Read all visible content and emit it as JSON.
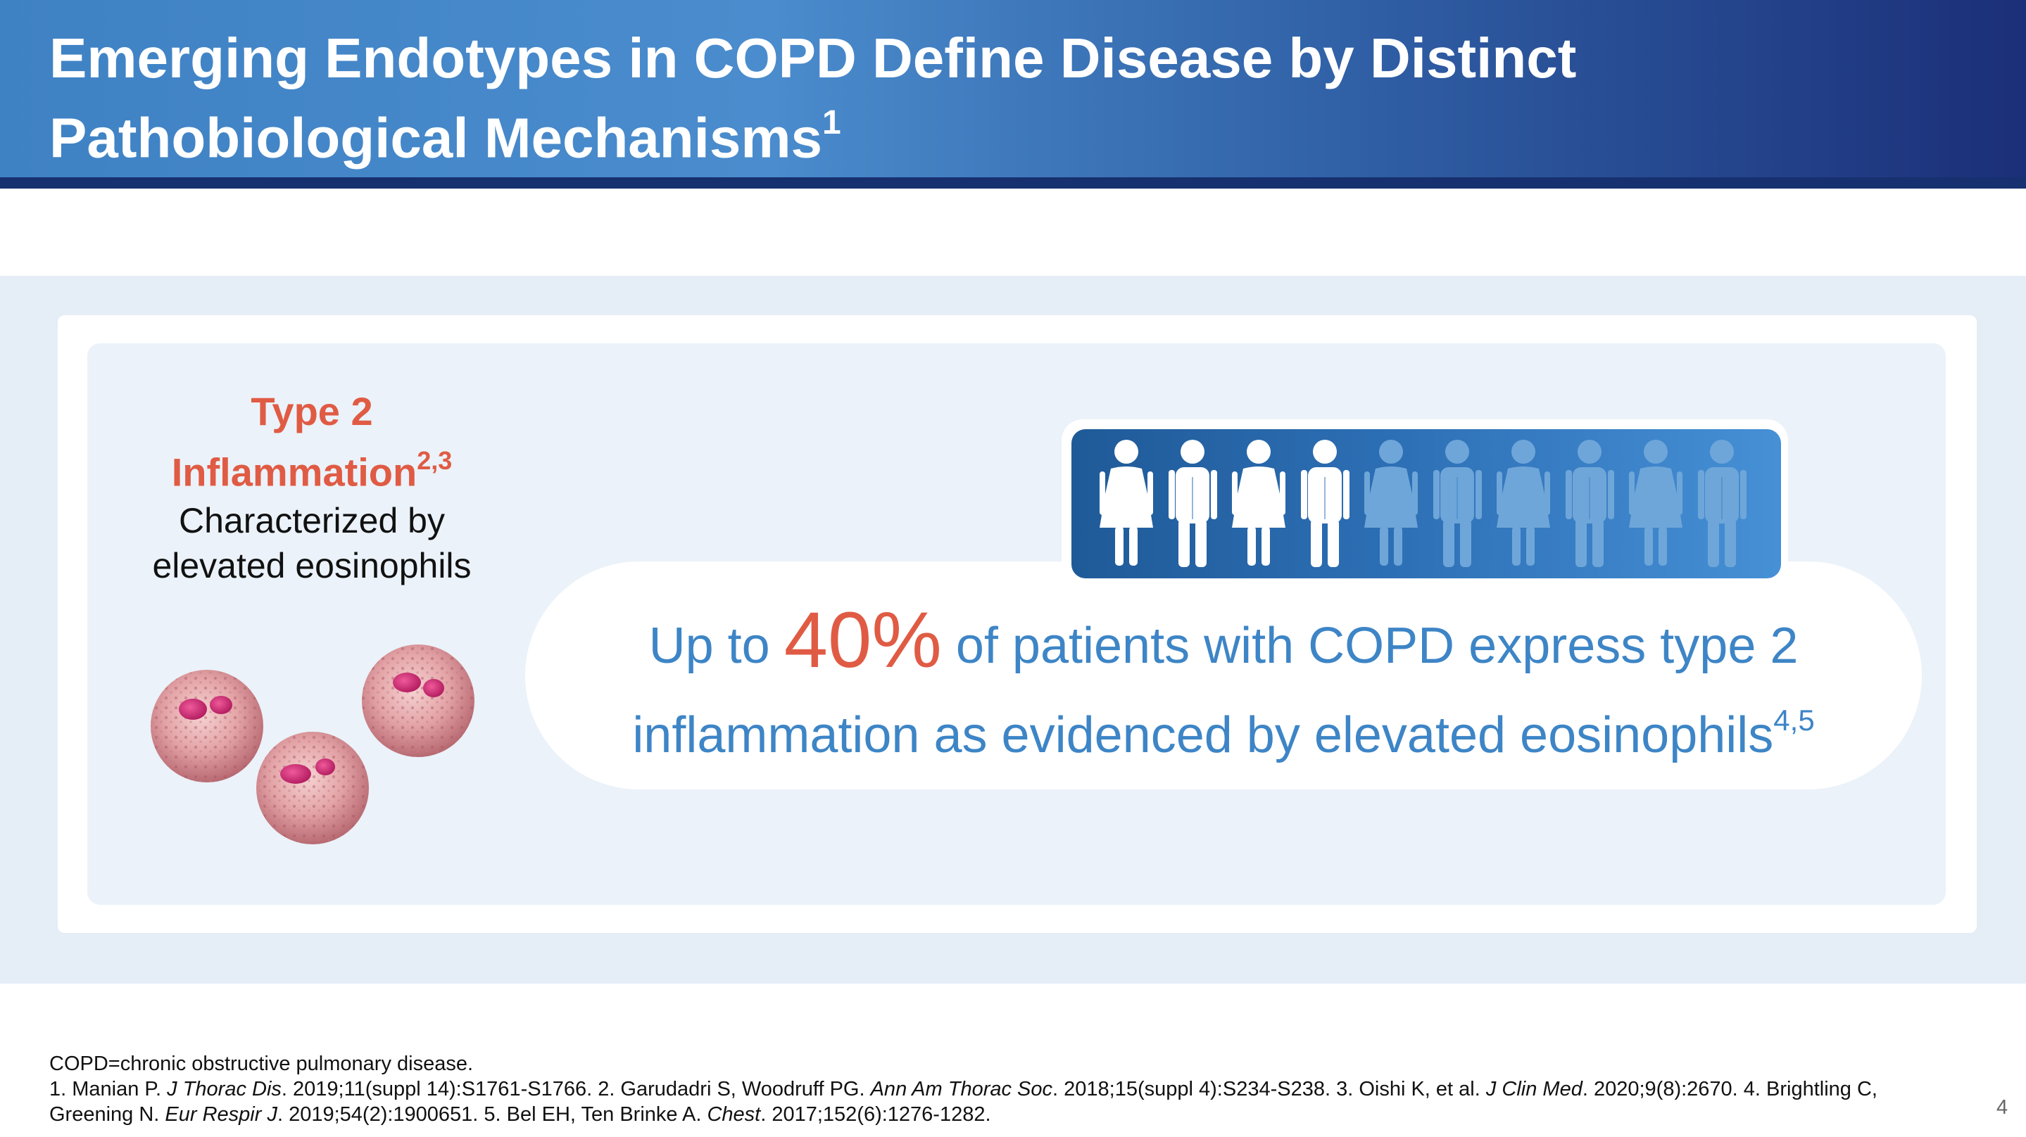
{
  "header": {
    "title_line1": "Emerging Endotypes in COPD Define Disease by Distinct",
    "title_line2": "Pathobiological Mechanisms",
    "title_ref": "1"
  },
  "left": {
    "heading_line1": "Type 2",
    "heading_line2": "Inflammation",
    "heading_ref": "2,3",
    "desc_line1": "Characterized by",
    "desc_line2": "elevated eosinophils",
    "illustration_icon": "eosinophil-cells-illustration"
  },
  "callout": {
    "pre": "Up to ",
    "percent": "40%",
    "post": " of patients with COPD express type 2",
    "line2": "inflammation as evidenced by elevated eosinophils",
    "ref": "4,5",
    "people_total": 10,
    "people_highlighted": 4,
    "people_icon": "person-icon"
  },
  "footer": {
    "abbrev": "COPD=chronic obstructive pulmonary disease.",
    "refs": {
      "r1_a": "1. Manian P. ",
      "r1_j": "J Thorac Dis",
      "r1_b": ". 2019;11(suppl 14):S1761-S1766. 2. Garudadri S, Woodruff PG. ",
      "r2_j": "Ann Am Thorac Soc",
      "r2_b": ". 2018;15(suppl 4):S234-S238. 3. Oishi K, et al. ",
      "r3_j": "J Clin Med",
      "r3_b": ". 2020;9(8):2670. 4. Brightling C,",
      "r4_a": "Greening N. ",
      "r4_j": "Eur Respir J",
      "r4_b": ". 2019;54(2):1900651. 5. Bel EH, Ten Brinke A. ",
      "r5_j": "Chest",
      "r5_b": ". 2017;152(6):1276-1282."
    },
    "page_number": "4"
  },
  "colors": {
    "accent_red": "#e05b44",
    "accent_blue": "#3d85c6",
    "header_dark": "#17306f"
  }
}
